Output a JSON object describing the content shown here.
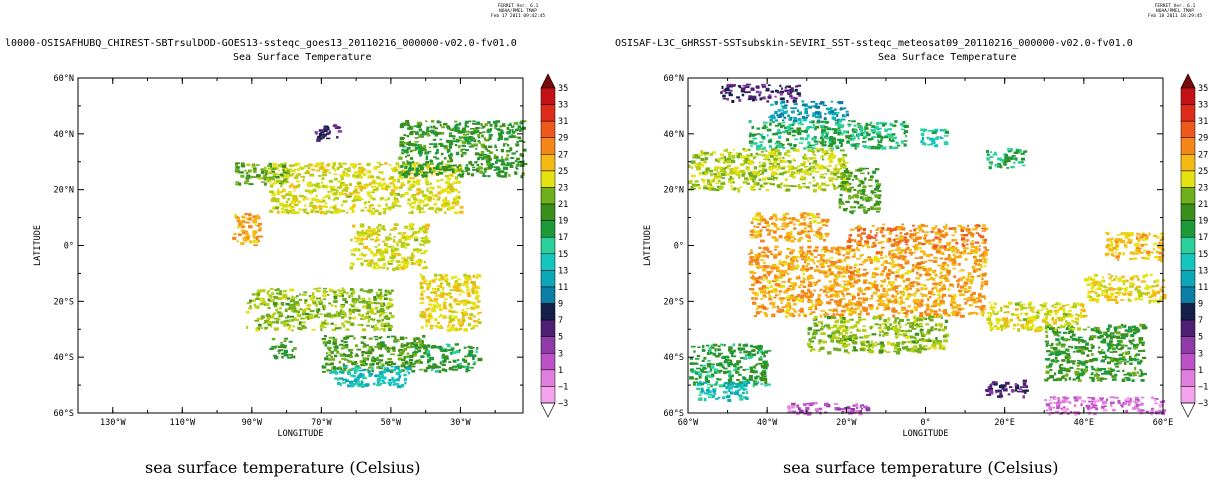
{
  "panels": [
    {
      "ferret_stamp": "FERRET Ver. 6.1\nNOAA/PMEL TMAP\nFeb 17 2011 09:42:45",
      "title": "l0000-OSISAFHUBQ_CHIREST-SBTrsulDOD-GOES13-ssteqc_goes13_20110216_000000-v02.0-fv01.0",
      "subtitle": "Sea Surface Temperature",
      "caption": "sea surface temperature (Celsius)",
      "chart_data": {
        "type": "heatmap",
        "title": "Sea Surface Temperature",
        "xlabel": "LONGITUDE",
        "ylabel": "LATITUDE",
        "xlim": [
          -140,
          -12
        ],
        "ylim": [
          -60,
          60
        ],
        "xticks": [
          -130,
          -110,
          -90,
          -70,
          -50,
          -30
        ],
        "xtick_labels": [
          "130°W",
          "110°W",
          "90°W",
          "70°W",
          "50°W",
          "30°W"
        ],
        "yticks": [
          60,
          40,
          20,
          0,
          -20,
          -40,
          -60
        ],
        "ytick_labels": [
          "60°N",
          "40°N",
          "20°N",
          "0°",
          "20°S",
          "40°S",
          "60°S"
        ],
        "colorbar_levels": [
          35,
          33,
          31,
          29,
          27,
          25,
          23,
          21,
          19,
          17,
          15,
          13,
          11,
          9,
          7,
          5,
          3,
          1,
          -1,
          -3
        ],
        "colorbar_unit": "Celsius",
        "patches": [
          {
            "lon": [
              -85,
              -30
            ],
            "lat": [
              12,
              30
            ],
            "value": 24
          },
          {
            "lon": [
              -48,
              -12
            ],
            "lat": [
              25,
              45
            ],
            "value": 19
          },
          {
            "lon": [
              -95,
              -80
            ],
            "lat": [
              22,
              30
            ],
            "value": 21
          },
          {
            "lon": [
              -96,
              -88
            ],
            "lat": [
              0,
              12
            ],
            "value": 27
          },
          {
            "lon": [
              -92,
              -50
            ],
            "lat": [
              -30,
              -15
            ],
            "value": 22
          },
          {
            "lon": [
              -62,
              -40
            ],
            "lat": [
              -8,
              8
            ],
            "value": 24
          },
          {
            "lon": [
              -42,
              -25
            ],
            "lat": [
              -30,
              -10
            ],
            "value": 25
          },
          {
            "lon": [
              -70,
              -40
            ],
            "lat": [
              -45,
              -32
            ],
            "value": 20
          },
          {
            "lon": [
              -68,
              -45
            ],
            "lat": [
              -50,
              -43
            ],
            "value": 14
          },
          {
            "lon": [
              -85,
              -78
            ],
            "lat": [
              -40,
              -33
            ],
            "value": 19
          },
          {
            "lon": [
              -40,
              -25
            ],
            "lat": [
              -45,
              -35
            ],
            "value": 18
          },
          {
            "lon": [
              -72,
              -65
            ],
            "lat": [
              38,
              44
            ],
            "value": 6
          }
        ]
      }
    },
    {
      "ferret_stamp": "FERRET Ver. 6.1\nNOAA/PMEL TMAP\nFeb 18 2011 18:29:45",
      "title": "OSISAF-L3C_GHRSST-SSTsubskin-SEVIRI_SST-ssteqc_meteosat09_20110216_000000-v02.0-fv01.0",
      "subtitle": "Sea Surface Temperature",
      "caption": "sea surface temperature (Celsius)",
      "chart_data": {
        "type": "heatmap",
        "title": "Sea Surface Temperature",
        "xlabel": "LONGITUDE",
        "ylabel": "LATITUDE",
        "xlim": [
          -60,
          60
        ],
        "ylim": [
          -60,
          60
        ],
        "xticks": [
          -60,
          -40,
          -20,
          0,
          20,
          40,
          60
        ],
        "xtick_labels": [
          "60°W",
          "40°W",
          "20°W",
          "0°",
          "20°E",
          "40°E",
          "60°E"
        ],
        "yticks": [
          60,
          40,
          20,
          0,
          -20,
          -40,
          -60
        ],
        "ytick_labels": [
          "60°N",
          "40°N",
          "20°N",
          "0°",
          "20°S",
          "40°S",
          "60°S"
        ],
        "colorbar_levels": [
          35,
          33,
          31,
          29,
          27,
          25,
          23,
          21,
          19,
          17,
          15,
          13,
          11,
          9,
          7,
          5,
          3,
          1,
          -1,
          -3
        ],
        "colorbar_unit": "Celsius",
        "patches": [
          {
            "lon": [
              -52,
              -32
            ],
            "lat": [
              52,
              58
            ],
            "value": 6
          },
          {
            "lon": [
              -40,
              -20
            ],
            "lat": [
              45,
              52
            ],
            "value": 12
          },
          {
            "lon": [
              -45,
              -5
            ],
            "lat": [
              35,
              45
            ],
            "value": 17
          },
          {
            "lon": [
              -60,
              -20
            ],
            "lat": [
              20,
              35
            ],
            "value": 23
          },
          {
            "lon": [
              -22,
              -12
            ],
            "lat": [
              12,
              28
            ],
            "value": 20
          },
          {
            "lon": [
              -45,
              -25
            ],
            "lat": [
              2,
              12
            ],
            "value": 27
          },
          {
            "lon": [
              -45,
              15
            ],
            "lat": [
              -25,
              0
            ],
            "value": 27
          },
          {
            "lon": [
              -20,
              15
            ],
            "lat": [
              0,
              8
            ],
            "value": 28
          },
          {
            "lon": [
              -30,
              5
            ],
            "lat": [
              -38,
              -25
            ],
            "value": 22
          },
          {
            "lon": [
              -60,
              -40
            ],
            "lat": [
              -50,
              -35
            ],
            "value": 18
          },
          {
            "lon": [
              -58,
              -45
            ],
            "lat": [
              -55,
              -48
            ],
            "value": 14
          },
          {
            "lon": [
              15,
              25
            ],
            "lat": [
              -54,
              -48
            ],
            "value": 6
          },
          {
            "lon": [
              30,
              55
            ],
            "lat": [
              -48,
              -28
            ],
            "value": 19
          },
          {
            "lon": [
              45,
              60
            ],
            "lat": [
              -5,
              5
            ],
            "value": 26
          },
          {
            "lon": [
              15,
              40
            ],
            "lat": [
              -30,
              -20
            ],
            "value": 24
          },
          {
            "lon": [
              40,
              60
            ],
            "lat": [
              -20,
              -10
            ],
            "value": 25
          },
          {
            "lon": [
              -35,
              -15
            ],
            "lat": [
              -60,
              -56
            ],
            "value": 2
          },
          {
            "lon": [
              30,
              60
            ],
            "lat": [
              -60,
              -54
            ],
            "value": 1
          },
          {
            "lon": [
              -2,
              5
            ],
            "lat": [
              36,
              42
            ],
            "value": 15
          },
          {
            "lon": [
              15,
              25
            ],
            "lat": [
              28,
              35
            ],
            "value": 17
          }
        ]
      }
    }
  ]
}
